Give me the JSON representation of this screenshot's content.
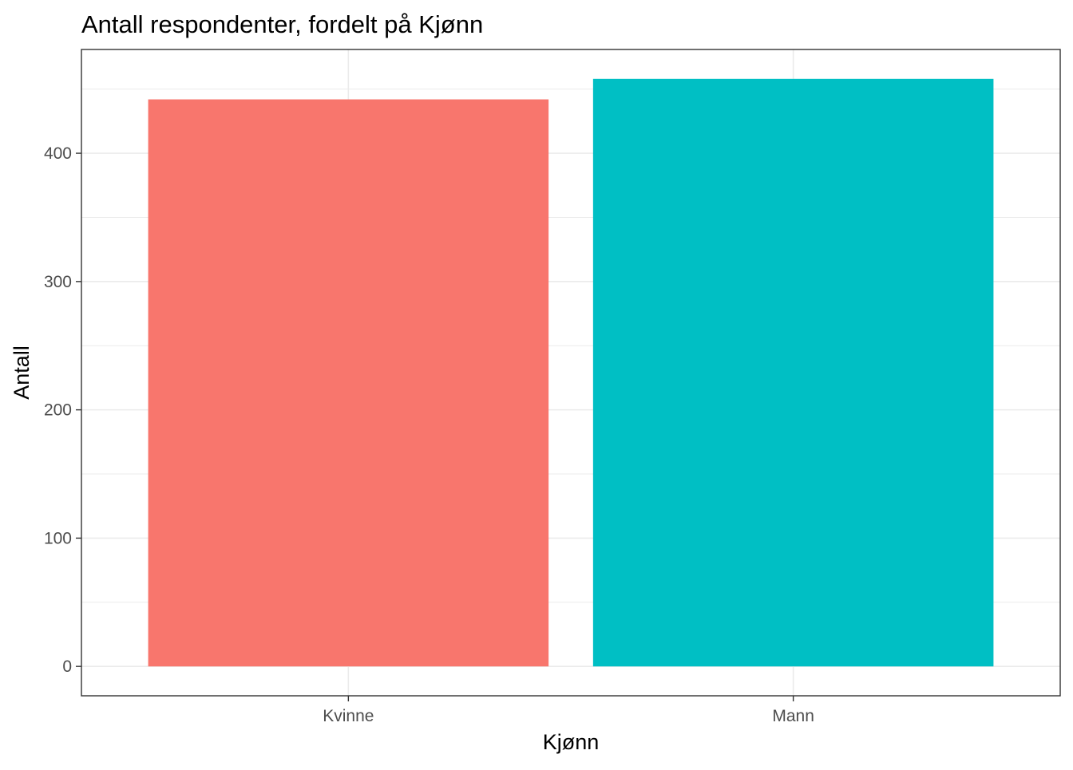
{
  "chart_data": {
    "type": "bar",
    "title": "Antall respondenter, fordelt på Kjønn",
    "xlabel": "Kjønn",
    "ylabel": "Antall",
    "categories": [
      "Kvinne",
      "Mann"
    ],
    "values": [
      442,
      458
    ],
    "bar_colors": [
      "#F8766D",
      "#00BFC4"
    ],
    "ylim": [
      -22.9,
      480.9
    ],
    "yticks": [
      0,
      100,
      200,
      300,
      400
    ],
    "ytick_labels": [
      "0",
      "100",
      "200",
      "300",
      "400"
    ],
    "grid": true,
    "legend": "none",
    "theme": "bw"
  }
}
